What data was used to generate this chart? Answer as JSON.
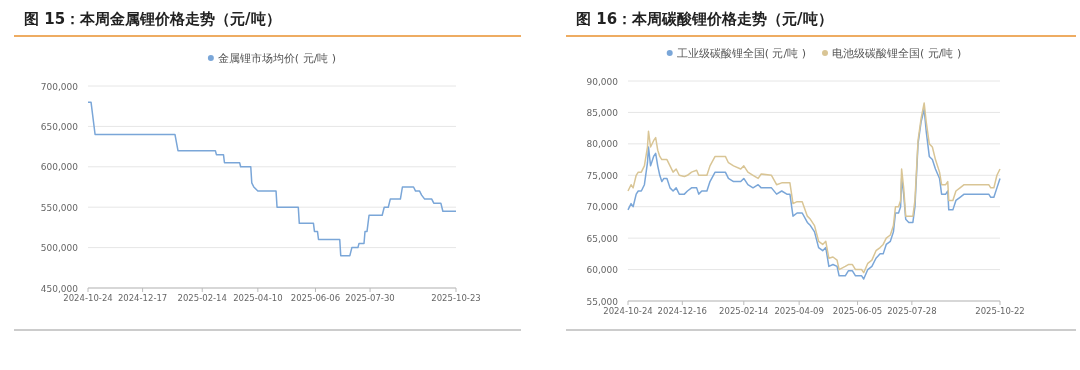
{
  "chart_data": [
    {
      "type": "line",
      "title": "图 15：本周金属锂价格走势（元/吨）",
      "legend": "top",
      "grid": "y",
      "x": [
        "2024-10-24",
        "2024-10-27",
        "2024-10-31",
        "2025-01-18",
        "2025-01-21",
        "2025-02-27",
        "2025-02-28",
        "2025-03-07",
        "2025-03-08",
        "2025-03-23",
        "2025-03-24",
        "2025-04-03",
        "2025-04-04",
        "2025-04-06",
        "2025-04-10",
        "2025-04-28",
        "2025-04-29",
        "2025-05-20",
        "2025-05-21",
        "2025-06-04",
        "2025-06-05",
        "2025-06-08",
        "2025-06-09",
        "2025-06-30",
        "2025-07-01",
        "2025-07-10",
        "2025-07-12",
        "2025-07-18",
        "2025-07-19",
        "2025-07-24",
        "2025-07-25",
        "2025-07-27",
        "2025-07-29",
        "2025-08-11",
        "2025-08-13",
        "2025-08-17",
        "2025-08-19",
        "2025-08-29",
        "2025-08-31",
        "2025-09-11",
        "2025-09-13",
        "2025-09-17",
        "2025-09-19",
        "2025-09-22",
        "2025-09-29",
        "2025-10-01",
        "2025-10-08",
        "2025-10-10",
        "2025-10-23"
      ],
      "series": [
        {
          "name": "金属锂市场均价( 元/吨 )",
          "color": "#7aa6d8",
          "values": [
            680000,
            680000,
            640000,
            640000,
            620000,
            620000,
            615000,
            615000,
            605000,
            605000,
            600000,
            600000,
            580000,
            575000,
            570000,
            570000,
            550000,
            550000,
            530000,
            530000,
            520000,
            520000,
            510000,
            510000,
            490000,
            490000,
            500000,
            500000,
            505000,
            505000,
            520000,
            520000,
            540000,
            540000,
            550000,
            550000,
            560000,
            560000,
            575000,
            575000,
            570000,
            570000,
            565000,
            560000,
            560000,
            555000,
            555000,
            545000,
            545000
          ]
        }
      ],
      "xlim": [
        "2024-10-24",
        "2025-10-23"
      ],
      "xticks": [
        {
          "value": "2024-10-24",
          "label": "2024-10-24"
        },
        {
          "value": "2024-12-17",
          "label": "2024-12-17"
        },
        {
          "value": "2025-02-14",
          "label": "2025-02-14"
        },
        {
          "value": "2025-04-10",
          "label": "2025-04-10"
        },
        {
          "value": "2025-06-06",
          "label": "2025-06-06"
        },
        {
          "value": "2025-07-30",
          "label": "2025-07-30"
        },
        {
          "value": "2025-10-23",
          "label": "2025-10-23"
        }
      ],
      "ylim": [
        450000,
        700000
      ],
      "yticks": [
        {
          "value": 450000,
          "label": "450,000"
        },
        {
          "value": 500000,
          "label": "500,000"
        },
        {
          "value": 550000,
          "label": "550,000"
        },
        {
          "value": 600000,
          "label": "600,000"
        },
        {
          "value": 650000,
          "label": "650,000"
        },
        {
          "value": 700000,
          "label": "700,000"
        }
      ]
    },
    {
      "type": "line",
      "title": "图 16：本周碳酸锂价格走势（元/吨）",
      "legend": "top",
      "grid": "y",
      "x": [
        "2024-10-24",
        "2024-10-27",
        "2024-10-29",
        "2024-11-01",
        "2024-11-03",
        "2024-11-06",
        "2024-11-09",
        "2024-11-12",
        "2024-11-13",
        "2024-11-15",
        "2024-11-18",
        "2024-11-20",
        "2024-11-22",
        "2024-11-24",
        "2024-11-26",
        "2024-11-28",
        "2024-12-01",
        "2024-12-04",
        "2024-12-07",
        "2024-12-10",
        "2024-12-13",
        "2024-12-18",
        "2024-12-21",
        "2024-12-25",
        "2024-12-30",
        "2025-01-01",
        "2025-01-04",
        "2025-01-09",
        "2025-01-12",
        "2025-01-17",
        "2025-01-27",
        "2025-01-30",
        "2025-02-04",
        "2025-02-11",
        "2025-02-14",
        "2025-02-18",
        "2025-02-23",
        "2025-02-28",
        "2025-03-03",
        "2025-03-13",
        "2025-03-18",
        "2025-03-23",
        "2025-03-28",
        "2025-03-31",
        "2025-04-03",
        "2025-04-07",
        "2025-04-12",
        "2025-04-17",
        "2025-04-20",
        "2025-04-24",
        "2025-04-28",
        "2025-05-02",
        "2025-05-05",
        "2025-05-08",
        "2025-05-12",
        "2025-05-16",
        "2025-05-18",
        "2025-05-24",
        "2025-05-27",
        "2025-05-31",
        "2025-06-03",
        "2025-06-09",
        "2025-06-11",
        "2025-06-15",
        "2025-06-19",
        "2025-06-23",
        "2025-06-27",
        "2025-06-30",
        "2025-07-03",
        "2025-07-07",
        "2025-07-10",
        "2025-07-12",
        "2025-07-15",
        "2025-07-17",
        "2025-07-18",
        "2025-07-20",
        "2025-07-22",
        "2025-07-25",
        "2025-07-29",
        "2025-07-31",
        "2025-08-03",
        "2025-08-06",
        "2025-08-09",
        "2025-08-11",
        "2025-08-14",
        "2025-08-17",
        "2025-08-20",
        "2025-08-24",
        "2025-08-26",
        "2025-08-30",
        "2025-09-01",
        "2025-09-02",
        "2025-09-06",
        "2025-09-09",
        "2025-09-13",
        "2025-09-17",
        "2025-09-29",
        "2025-10-11",
        "2025-10-13",
        "2025-10-16",
        "2025-10-19",
        "2025-10-22"
      ],
      "series": [
        {
          "name": "工业级碳酸锂全国( 元/吨 )",
          "color": "#7aa6d8",
          "values": [
            69500,
            70500,
            70000,
            72000,
            72500,
            72500,
            73500,
            77000,
            79500,
            76500,
            78000,
            78500,
            76500,
            75000,
            74000,
            74500,
            74500,
            73000,
            72500,
            73000,
            72000,
            72000,
            72500,
            73000,
            73000,
            72000,
            72500,
            72500,
            74000,
            75500,
            75500,
            74500,
            74000,
            74000,
            74500,
            73500,
            73000,
            73500,
            73000,
            73000,
            72000,
            72500,
            72000,
            72000,
            68500,
            69000,
            69000,
            67500,
            67000,
            66000,
            63500,
            63000,
            63500,
            60500,
            60800,
            60500,
            59000,
            59000,
            59800,
            59800,
            59000,
            59000,
            58500,
            60000,
            60500,
            61800,
            62500,
            62500,
            64000,
            64500,
            66000,
            69000,
            69000,
            70000,
            74500,
            72000,
            68000,
            67500,
            67500,
            70000,
            80000,
            83500,
            85500,
            82000,
            78000,
            77500,
            76000,
            74500,
            72000,
            72000,
            72500,
            69500,
            69500,
            71000,
            71500,
            72000,
            72000,
            72000,
            71500,
            71500,
            73000,
            74500
          ]
        },
        {
          "name": "电池级碳酸锂全国( 元/吨 )",
          "color": "#d9c595",
          "values": [
            72500,
            73500,
            73000,
            75000,
            75500,
            75500,
            76500,
            79500,
            82000,
            79500,
            80500,
            81000,
            79000,
            78000,
            77500,
            77500,
            77500,
            76500,
            75500,
            76000,
            75000,
            74800,
            75000,
            75500,
            75800,
            75000,
            75000,
            75000,
            76500,
            78000,
            78000,
            77000,
            76500,
            76000,
            76500,
            75500,
            75000,
            74500,
            75200,
            75000,
            73500,
            73800,
            73800,
            73800,
            70500,
            70800,
            70800,
            68500,
            68000,
            67000,
            64500,
            64000,
            64500,
            61800,
            62000,
            61500,
            60000,
            60500,
            60800,
            60800,
            60000,
            60000,
            59500,
            61000,
            61500,
            63000,
            63500,
            64000,
            65000,
            65500,
            67000,
            70000,
            70000,
            71000,
            76000,
            73000,
            68500,
            68500,
            68500,
            71000,
            80500,
            84000,
            86500,
            83500,
            80000,
            79500,
            77500,
            75500,
            73500,
            73500,
            74000,
            71000,
            71000,
            72500,
            73000,
            73500,
            73500,
            73500,
            73000,
            73000,
            75000,
            76000
          ]
        }
      ],
      "xlim": [
        "2024-10-24",
        "2025-10-22"
      ],
      "xticks": [
        {
          "value": "2024-10-24",
          "label": "2024-10-24"
        },
        {
          "value": "2024-12-16",
          "label": "2024-12-16"
        },
        {
          "value": "2025-02-14",
          "label": "2025-02-14"
        },
        {
          "value": "2025-04-09",
          "label": "2025-04-09"
        },
        {
          "value": "2025-06-05",
          "label": "2025-06-05"
        },
        {
          "value": "2025-07-28",
          "label": "2025-07-28"
        },
        {
          "value": "2025-10-22",
          "label": "2025-10-22"
        }
      ],
      "ylim": [
        55000,
        90000
      ],
      "yticks": [
        {
          "value": 55000,
          "label": "55,000"
        },
        {
          "value": 60000,
          "label": "60,000"
        },
        {
          "value": 65000,
          "label": "65,000"
        },
        {
          "value": 70000,
          "label": "70,000"
        },
        {
          "value": 75000,
          "label": "75,000"
        },
        {
          "value": 80000,
          "label": "80,000"
        },
        {
          "value": 85000,
          "label": "85,000"
        },
        {
          "value": 90000,
          "label": "90,000"
        }
      ]
    }
  ]
}
